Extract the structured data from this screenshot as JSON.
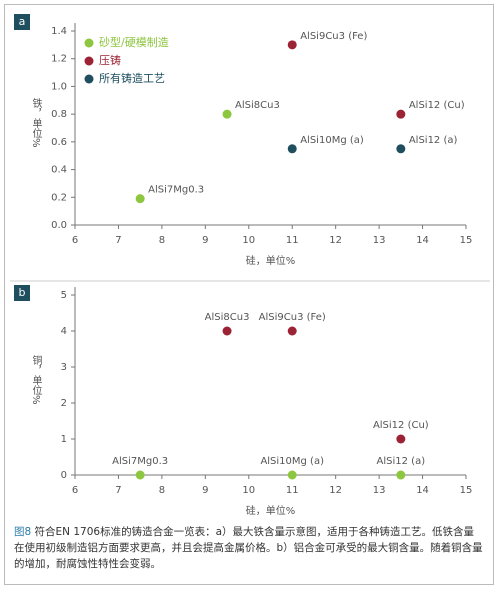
{
  "chart_data": [
    {
      "type": "scatter",
      "panel": "a",
      "xlabel": "硅，单位%",
      "ylabel": "铁，单位%",
      "xlim": [
        6,
        15
      ],
      "xticks": [
        6,
        7,
        8,
        9,
        10,
        11,
        12,
        13,
        14,
        15
      ],
      "ylim": [
        0,
        1.4
      ],
      "yticks": [
        {
          "value": 0,
          "label": "0.0"
        },
        0.2,
        0.4,
        0.6,
        0.8,
        {
          "value": 1,
          "label": "1.0"
        },
        1.2,
        1.4
      ],
      "legend": "top-left",
      "series": [
        {
          "name": "砂型/硬模制造",
          "color": "#8dc63f",
          "x": [
            7.5,
            9.5
          ],
          "values": [
            0.19,
            0.8
          ],
          "labels": [
            "AlSi7Mg0.3",
            "AlSi8Cu3"
          ]
        },
        {
          "name": "压铸",
          "color": "#9b2335",
          "x": [
            11,
            13.5
          ],
          "values": [
            1.3,
            0.8
          ],
          "labels": [
            "AlSi9Cu3 (Fe)",
            "AlSi12 (Cu)"
          ]
        },
        {
          "name": "所有铸造工艺",
          "color": "#1f4e5f",
          "x": [
            11,
            13.5
          ],
          "values": [
            0.55,
            0.55
          ],
          "labels": [
            "AlSi10Mg (a)",
            "AlSi12 (a)"
          ]
        }
      ]
    },
    {
      "type": "scatter",
      "panel": "b",
      "xlabel": "硅，单位%",
      "ylabel": "铜，单位%",
      "xlim": [
        6,
        15
      ],
      "xticks": [
        6,
        7,
        8,
        9,
        10,
        11,
        12,
        13,
        14,
        15
      ],
      "ylim": [
        0,
        5
      ],
      "yticks": [
        0,
        1,
        2,
        3,
        4,
        5
      ],
      "series": [
        {
          "color": "#8dc63f",
          "x": [
            7.5,
            11,
            13.5
          ],
          "values": [
            0,
            0,
            0
          ],
          "labels": [
            "AlSi7Mg0.3",
            "AlSi10Mg (a)",
            "AlSi12 (a)"
          ]
        },
        {
          "color": "#9b2335",
          "x": [
            9.5,
            11,
            13.5
          ],
          "values": [
            4,
            4,
            1
          ],
          "labels": [
            "AlSi8Cu3",
            "AlSi9Cu3 (Fe)",
            "AlSi12 (Cu)"
          ]
        }
      ]
    }
  ],
  "caption_label": "图8",
  "caption": " 符合EN 1706标准的铸造合金一览表：a）最大铁含量示意图，适用于各种铸造工艺。低铁含量在使用初级制造铝方面要求更高，并且会提高金属价格。b）铝合金可承受的最大铜含量。随着铜含量的增加，耐腐蚀性特性会变弱。"
}
